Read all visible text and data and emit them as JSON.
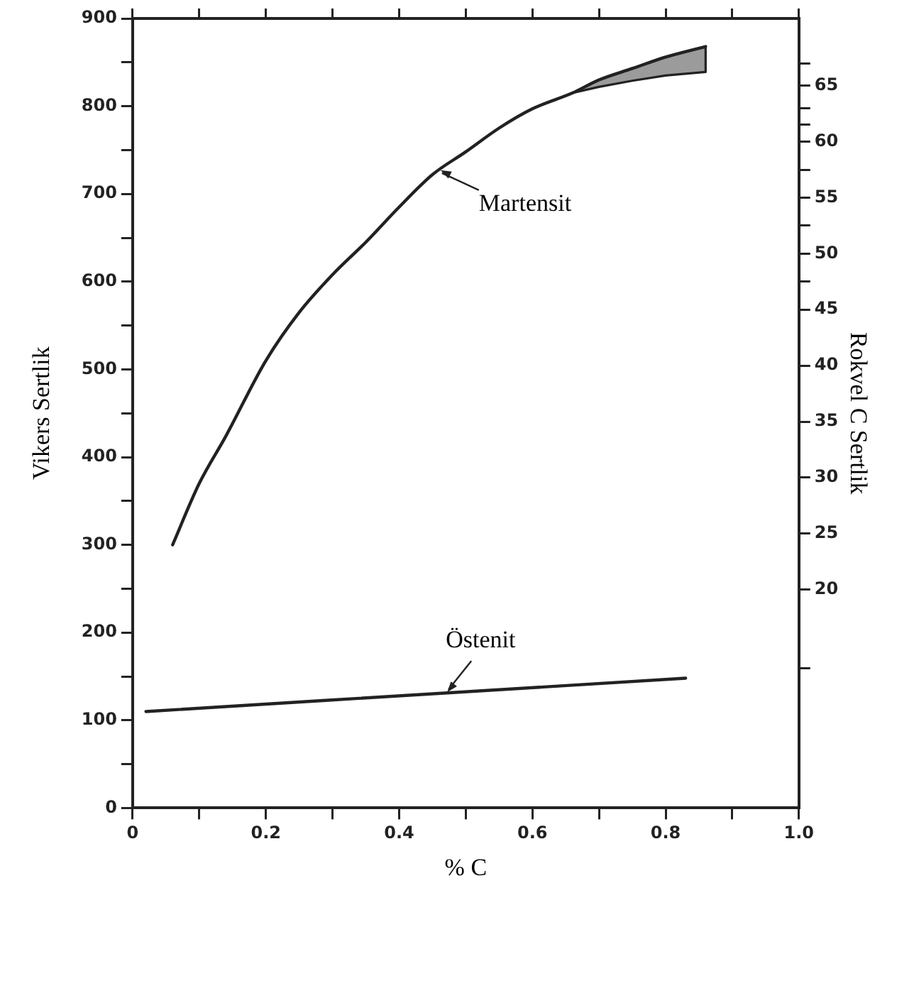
{
  "chart_data": {
    "type": "line",
    "xlabel": "% C",
    "ylabel": "Vikers Sertlik",
    "y2label": "Rokvel C Sertlik",
    "xlim": [
      0,
      1
    ],
    "xticks": [
      0,
      0.2,
      0.4,
      0.6,
      0.8,
      {
        "value": 1,
        "label": "1.0"
      },
      {
        "value": 0.1,
        "label": null
      },
      {
        "value": 0.3,
        "label": null
      },
      {
        "value": 0.5,
        "label": null
      },
      {
        "value": 0.7,
        "label": null
      },
      {
        "value": 0.9,
        "label": null
      }
    ],
    "ylim": [
      0,
      900
    ],
    "yticks": [
      0,
      100,
      200,
      300,
      400,
      500,
      600,
      700,
      800,
      900,
      {
        "value": 50,
        "label": null
      },
      {
        "value": 150,
        "label": null
      },
      {
        "value": 250,
        "label": null
      },
      {
        "value": 350,
        "label": null
      },
      {
        "value": 450,
        "label": null
      },
      {
        "value": 550,
        "label": null
      },
      {
        "value": 650,
        "label": null
      },
      {
        "value": 750,
        "label": null
      },
      {
        "value": 850,
        "label": null
      }
    ],
    "y2lim": [
      0.5,
      71
    ],
    "y2ticks": [
      65,
      60,
      55,
      50,
      45,
      40,
      35,
      30,
      25,
      20,
      {
        "value": 67,
        "label": null
      },
      {
        "value": 63,
        "label": null
      },
      {
        "value": 61.5,
        "label": null
      },
      {
        "value": 57.5,
        "label": null
      },
      {
        "value": 52.5,
        "label": null
      },
      {
        "value": 47.5,
        "label": null
      },
      {
        "value": 13,
        "label": null
      }
    ],
    "grid": false,
    "legend": false,
    "marker": "none",
    "line_style": "solid",
    "series": [
      {
        "color": "#222222",
        "x": [
          0.06,
          0.1,
          0.14,
          0.2,
          0.25,
          0.3,
          0.35,
          0.4,
          0.45,
          0.5,
          0.55,
          0.6,
          0.66,
          0.7,
          0.75,
          0.8,
          0.86
        ],
        "values": [
          300,
          370,
          424,
          510,
          565,
          608,
          645,
          685,
          722,
          748,
          775,
          797,
          815,
          830,
          843,
          856,
          868
        ],
        "lower": [
          null,
          null,
          null,
          null,
          null,
          null,
          null,
          null,
          null,
          null,
          null,
          null,
          815,
          822,
          829,
          835,
          839
        ],
        "upper": [
          null,
          null,
          null,
          null,
          null,
          null,
          null,
          null,
          null,
          null,
          null,
          null,
          815,
          830,
          843,
          856,
          868
        ]
      },
      {
        "color": "#222222",
        "x": [
          0.02,
          0.83
        ],
        "values": [
          110,
          148
        ]
      }
    ],
    "annotations": [
      {
        "text": "Martensit",
        "x": 0.46,
        "y": 727
      },
      {
        "text": "Östenit",
        "x": 0.47,
        "y": 132
      }
    ]
  }
}
